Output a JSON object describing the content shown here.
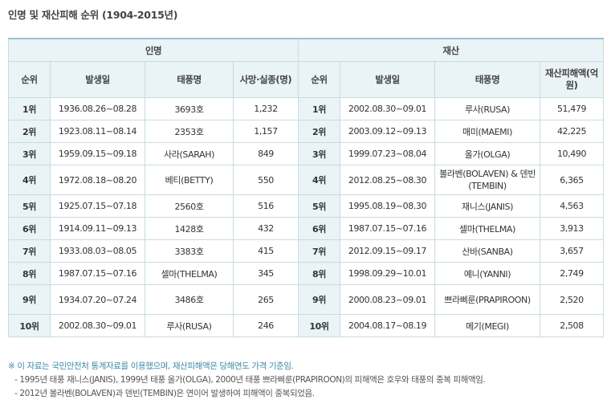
{
  "title": "인명 및 재산피해 순위 (1904-2015년)",
  "groups": {
    "casualty": "인명",
    "property": "재산"
  },
  "columns": {
    "rank": "순위",
    "date": "발생일",
    "typhoon": "태풍명",
    "deaths": "사망·실종(명)",
    "damage": "재산피해액(억원)"
  },
  "rows": [
    {
      "rank": "1위",
      "c_date": "1936.08.26~08.28",
      "c_name": "3693호",
      "c_count": "1,232",
      "p_date": "2002.08.30~09.01",
      "p_name": "루사(RUSA)",
      "p_amount": "51,479"
    },
    {
      "rank": "2위",
      "c_date": "1923.08.11~08.14",
      "c_name": "2353호",
      "c_count": "1,157",
      "p_date": "2003.09.12~09.13",
      "p_name": "매미(MAEMI)",
      "p_amount": "42,225"
    },
    {
      "rank": "3위",
      "c_date": "1959.09.15~09.18",
      "c_name": "사라(SARAH)",
      "c_count": "849",
      "p_date": "1999.07.23~08.04",
      "p_name": "올가(OLGA)",
      "p_amount": "10,490"
    },
    {
      "rank": "4위",
      "c_date": "1972.08.18~08.20",
      "c_name": "베티(BETTY)",
      "c_count": "550",
      "p_date": "2012.08.25~08.30",
      "p_name": "볼라벤(BOLAVEN) & 덴빈(TEMBIN)",
      "p_amount": "6,365"
    },
    {
      "rank": "5위",
      "c_date": "1925.07.15~07.18",
      "c_name": "2560호",
      "c_count": "516",
      "p_date": "1995.08.19~08.30",
      "p_name": "재니스(JANIS)",
      "p_amount": "4,563"
    },
    {
      "rank": "6위",
      "c_date": "1914.09.11~09.13",
      "c_name": "1428호",
      "c_count": "432",
      "p_date": "1987.07.15~07.16",
      "p_name": "셀마(THELMA)",
      "p_amount": "3,913"
    },
    {
      "rank": "7위",
      "c_date": "1933.08.03~08.05",
      "c_name": "3383호",
      "c_count": "415",
      "p_date": "2012.09.15~09.17",
      "p_name": "산바(SANBA)",
      "p_amount": "3,657"
    },
    {
      "rank": "8위",
      "c_date": "1987.07.15~07.16",
      "c_name": "셀마(THELMA)",
      "c_count": "345",
      "p_date": "1998.09.29~10.01",
      "p_name": "예니(YANNI)",
      "p_amount": "2,749"
    },
    {
      "rank": "9위",
      "c_date": "1934.07.20~07.24",
      "c_name": "3486호",
      "c_count": "265",
      "p_date": "2000.08.23~09.01",
      "p_name": "쁘라삐룬(PRAPIROON)",
      "p_amount": "2,520"
    },
    {
      "rank": "10위",
      "c_date": "2002.08.30~09.01",
      "c_name": "루사(RUSA)",
      "c_count": "246",
      "p_date": "2004.08.17~08.19",
      "p_name": "메기(MEGI)",
      "p_amount": "2,508"
    }
  ],
  "notes": {
    "main": "※ 이 자료는 국민안전처 통계자료를 이용했으며, 재산피해액은 당해연도 가격 기준임.",
    "sub1": "- 1995년 태풍 재니스(JANIS), 1999년 태풍 올가(OLGA), 2000년 태풍 쁘라삐룬(PRAPIROON)의 피해액은 호우와 태풍의 중복 피해액임.",
    "sub2": "- 2012년 볼라벤(BOLAVEN)과 덴빈(TEMBIN)은 연이어 발생하여 피해액이 중복되었음."
  }
}
